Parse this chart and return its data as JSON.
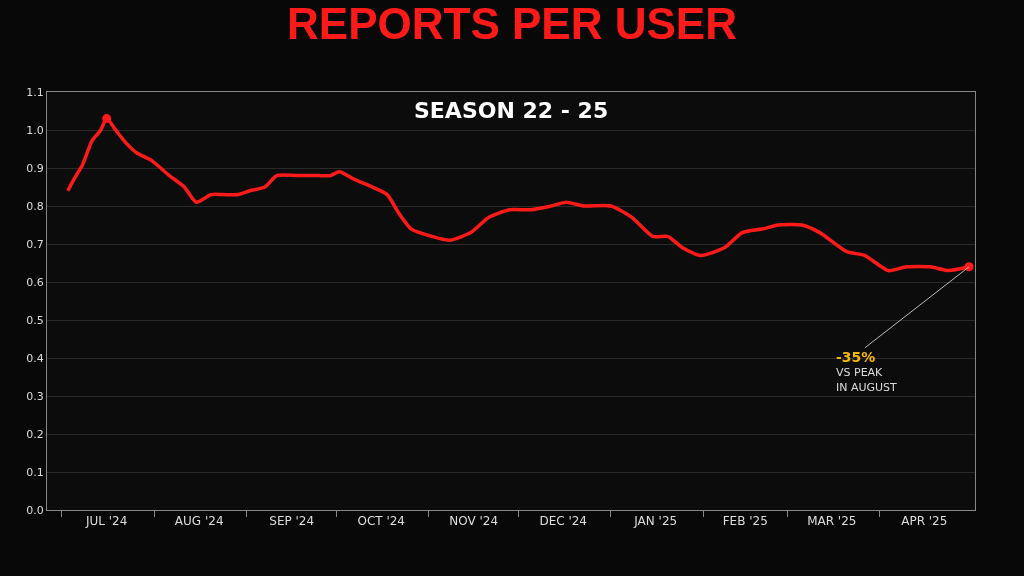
{
  "chart_data": {
    "type": "line",
    "title": "REPORTS PER USER",
    "subtitle": "SEASON 22 - 25",
    "x": [
      "2024-07-03",
      "2024-07-05",
      "2024-07-08",
      "2024-07-11",
      "2024-07-14",
      "2024-07-16",
      "2024-07-19",
      "2024-07-22",
      "2024-07-26",
      "2024-07-31",
      "2024-08-06",
      "2024-08-11",
      "2024-08-15",
      "2024-08-20",
      "2024-08-24",
      "2024-08-29",
      "2024-09-02",
      "2024-09-07",
      "2024-09-11",
      "2024-09-18",
      "2024-09-25",
      "2024-09-29",
      "2024-10-02",
      "2024-10-07",
      "2024-10-13",
      "2024-10-18",
      "2024-10-22",
      "2024-10-26",
      "2024-11-02",
      "2024-11-08",
      "2024-11-15",
      "2024-11-21",
      "2024-11-28",
      "2024-12-05",
      "2024-12-12",
      "2024-12-17",
      "2024-12-23",
      "2025-01-01",
      "2025-01-08",
      "2025-01-15",
      "2025-01-20",
      "2025-01-25",
      "2025-01-31",
      "2025-02-08",
      "2025-02-14",
      "2025-02-21",
      "2025-02-26",
      "2025-03-06",
      "2025-03-12",
      "2025-03-21",
      "2025-03-27",
      "2025-04-04",
      "2025-04-10",
      "2025-04-18",
      "2025-04-24",
      "2025-05-01"
    ],
    "series": [
      {
        "color": "#ff1a1a",
        "values": [
          0.84,
          0.87,
          0.91,
          0.97,
          1.0,
          1.03,
          1.0,
          0.97,
          0.94,
          0.92,
          0.88,
          0.85,
          0.81,
          0.83,
          0.83,
          0.83,
          0.84,
          0.85,
          0.88,
          0.88,
          0.88,
          0.88,
          0.89,
          0.87,
          0.85,
          0.83,
          0.78,
          0.74,
          0.72,
          0.71,
          0.73,
          0.77,
          0.79,
          0.79,
          0.8,
          0.81,
          0.8,
          0.8,
          0.77,
          0.72,
          0.72,
          0.69,
          0.67,
          0.69,
          0.73,
          0.74,
          0.75,
          0.75,
          0.73,
          0.68,
          0.67,
          0.63,
          0.64,
          0.64,
          0.63,
          0.64
        ]
      }
    ],
    "marker": "none",
    "line_style": "solid",
    "grid": "y",
    "xlim": [
      "2024-06-26",
      "2025-05-03"
    ],
    "xticks": [
      {
        "value": "2024-07-01",
        "label": null
      },
      {
        "value": "2024-07-16",
        "label": "JUL '24"
      },
      {
        "value": "2024-08-01",
        "label": null
      },
      {
        "value": "2024-08-16",
        "label": "AUG '24"
      },
      {
        "value": "2024-09-01",
        "label": null
      },
      {
        "value": "2024-09-16",
        "label": "SEP '24"
      },
      {
        "value": "2024-10-01",
        "label": null
      },
      {
        "value": "2024-10-16",
        "label": "OCT '24"
      },
      {
        "value": "2024-11-01",
        "label": null
      },
      {
        "value": "2024-11-16",
        "label": "NOV '24"
      },
      {
        "value": "2024-12-01",
        "label": null
      },
      {
        "value": "2024-12-16",
        "label": "DEC '24"
      },
      {
        "value": "2025-01-01",
        "label": null
      },
      {
        "value": "2025-01-16",
        "label": "JAN '25"
      },
      {
        "value": "2025-02-01",
        "label": null
      },
      {
        "value": "2025-02-15",
        "label": "FEB '25"
      },
      {
        "value": "2025-03-01",
        "label": null
      },
      {
        "value": "2025-03-16",
        "label": "MAR '25"
      },
      {
        "value": "2025-04-01",
        "label": null
      },
      {
        "value": "2025-04-16",
        "label": "APR '25"
      }
    ],
    "ylim": [
      0,
      1.1
    ],
    "yticks": [
      {
        "value": 0,
        "label": "0.0"
      },
      0.1,
      0.2,
      0.3,
      0.4,
      0.5,
      0.6,
      0.7,
      0.8,
      0.9,
      {
        "value": 1,
        "label": "1.0"
      },
      1.1
    ],
    "annotations": [
      {
        "text": "-35%\nVS PEAK\nIN AUGUST",
        "x": "2025-05-01",
        "y": 0.64
      }
    ]
  }
}
